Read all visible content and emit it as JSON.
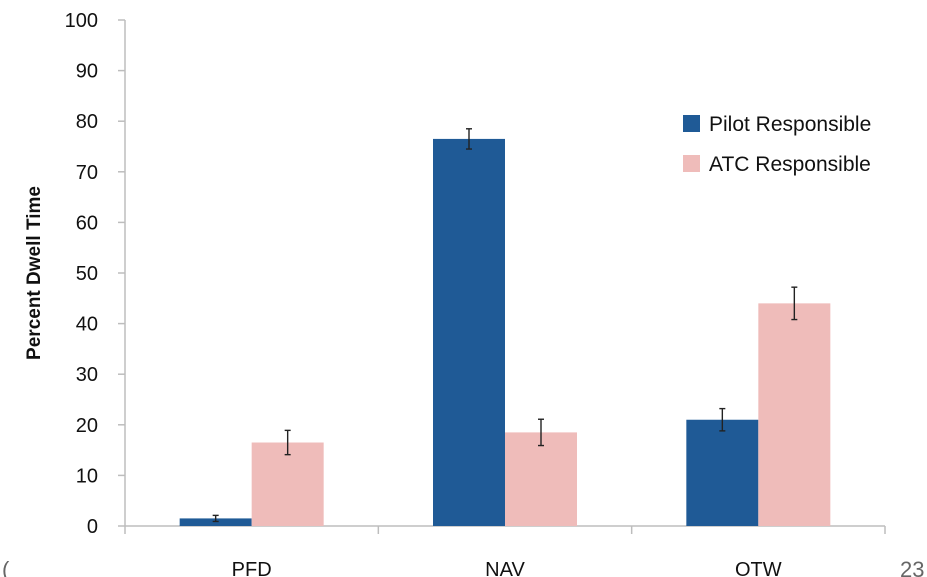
{
  "chart_data": {
    "type": "bar",
    "title": "",
    "xlabel": "",
    "ylabel": "Percent Dwell Time",
    "ylim": [
      0,
      100
    ],
    "yticks": [
      0,
      10,
      20,
      30,
      40,
      50,
      60,
      70,
      80,
      90,
      100
    ],
    "categories": [
      "PFD",
      "NAV",
      "OTW"
    ],
    "series": [
      {
        "name": "Pilot Responsible",
        "color": "#1f5a96",
        "values": [
          1.5,
          76.5,
          21
        ],
        "error": [
          0.6,
          2.0,
          2.2
        ]
      },
      {
        "name": "ATC Responsible",
        "color": "#efbcba",
        "values": [
          16.5,
          18.5,
          44
        ],
        "error": [
          2.4,
          2.6,
          3.2
        ]
      }
    ],
    "grid": false,
    "legend_position": "right"
  },
  "corner": {
    "left_text": "(",
    "right_text": "23"
  }
}
